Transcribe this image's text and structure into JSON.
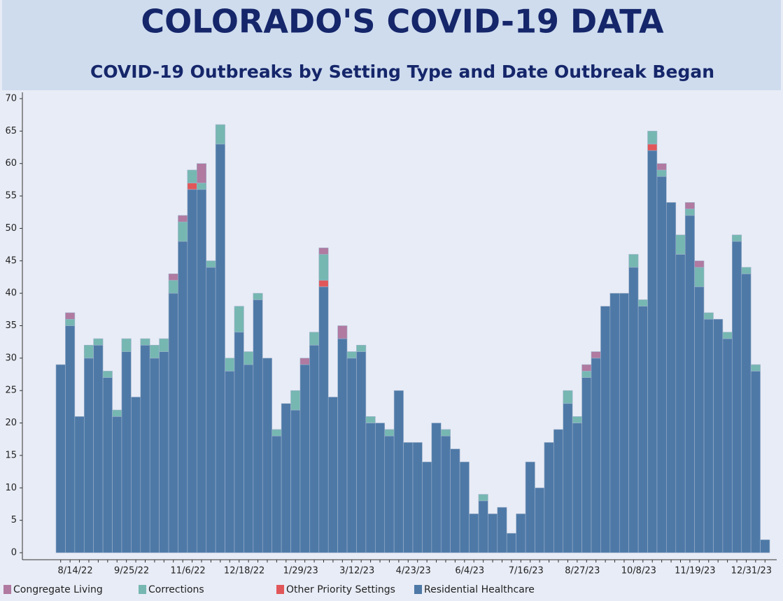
{
  "chart_data": {
    "type": "stacked_bar",
    "title": "COLORADO'S COVID-19 DATA",
    "subtitle": "COVID-19 Outbreaks by Setting Type and Date Outbreak Began",
    "categories": [
      null,
      null,
      "8/14/22",
      null,
      null,
      null,
      null,
      null,
      "9/25/22",
      null,
      null,
      null,
      null,
      null,
      "11/6/22",
      null,
      null,
      null,
      null,
      null,
      "12/18/22",
      null,
      null,
      null,
      null,
      null,
      "1/29/23",
      null,
      null,
      null,
      null,
      null,
      "3/12/23",
      null,
      null,
      null,
      null,
      null,
      "4/23/23",
      null,
      null,
      null,
      null,
      null,
      "6/4/23",
      null,
      null,
      null,
      null,
      null,
      "7/16/23",
      null,
      null,
      null,
      null,
      null,
      "8/27/23",
      null,
      null,
      null,
      null,
      null,
      "10/8/23",
      null,
      null,
      null,
      null,
      null,
      "11/19/23",
      null,
      null,
      null,
      null,
      null,
      "12/31/23",
      null
    ],
    "series": [
      {
        "name": "Congregate Living",
        "color": "#b07aa1",
        "values": [
          0,
          1,
          0,
          0,
          0,
          0,
          0,
          0,
          0,
          0,
          0,
          0,
          1,
          1,
          0,
          3,
          0,
          0,
          0,
          0,
          0,
          0,
          0,
          0,
          0,
          0,
          1,
          0,
          1,
          0,
          2,
          0,
          0,
          0,
          0,
          0,
          0,
          0,
          0,
          0,
          0,
          0,
          0,
          0,
          0,
          0,
          0,
          0,
          0,
          0,
          0,
          0,
          0,
          0,
          0,
          0,
          1,
          1,
          0,
          0,
          0,
          0,
          0,
          0,
          1,
          0,
          0,
          1,
          1,
          0,
          0,
          0,
          0,
          0,
          0,
          0
        ]
      },
      {
        "name": "Corrections",
        "color": "#76b7b2",
        "values": [
          0,
          1,
          0,
          2,
          1,
          1,
          1,
          2,
          0,
          1,
          2,
          2,
          2,
          3,
          2,
          1,
          1,
          3,
          2,
          4,
          2,
          1,
          0,
          1,
          0,
          3,
          0,
          2,
          4,
          0,
          0,
          1,
          1,
          1,
          0,
          1,
          0,
          0,
          0,
          0,
          0,
          1,
          0,
          0,
          0,
          1,
          0,
          0,
          0,
          0,
          0,
          0,
          0,
          0,
          2,
          1,
          1,
          0,
          0,
          0,
          0,
          2,
          1,
          2,
          1,
          0,
          3,
          1,
          3,
          1,
          0,
          1,
          1,
          1,
          1,
          0
        ]
      },
      {
        "name": "Other Priority Settings",
        "color": "#e15759",
        "values": [
          0,
          0,
          0,
          0,
          0,
          0,
          0,
          0,
          0,
          0,
          0,
          0,
          0,
          0,
          1,
          0,
          0,
          0,
          0,
          0,
          0,
          0,
          0,
          0,
          0,
          0,
          0,
          0,
          1,
          0,
          0,
          0,
          0,
          0,
          0,
          0,
          0,
          0,
          0,
          0,
          0,
          0,
          0,
          0,
          0,
          0,
          0,
          0,
          0,
          0,
          0,
          0,
          0,
          0,
          0,
          0,
          0,
          0,
          0,
          0,
          0,
          0,
          0,
          1,
          0,
          0,
          0,
          0,
          0,
          0,
          0,
          0,
          0,
          0,
          0,
          0
        ]
      },
      {
        "name": "Residential Healthcare",
        "color": "#4e79a7",
        "values": [
          29,
          35,
          21,
          30,
          32,
          27,
          21,
          31,
          24,
          32,
          30,
          31,
          40,
          48,
          56,
          56,
          44,
          63,
          28,
          34,
          29,
          39,
          30,
          18,
          23,
          22,
          29,
          32,
          41,
          24,
          33,
          30,
          31,
          20,
          20,
          18,
          25,
          17,
          17,
          14,
          20,
          18,
          16,
          14,
          6,
          8,
          6,
          7,
          3,
          6,
          14,
          10,
          17,
          19,
          23,
          20,
          27,
          30,
          38,
          40,
          40,
          44,
          38,
          62,
          58,
          54,
          46,
          52,
          41,
          36,
          36,
          33,
          48,
          43,
          28,
          2
        ]
      }
    ],
    "ylim": [
      0,
      70
    ],
    "yticks": [
      0,
      5,
      10,
      15,
      20,
      25,
      30,
      35,
      40,
      45,
      50,
      55,
      60,
      65,
      70
    ]
  }
}
